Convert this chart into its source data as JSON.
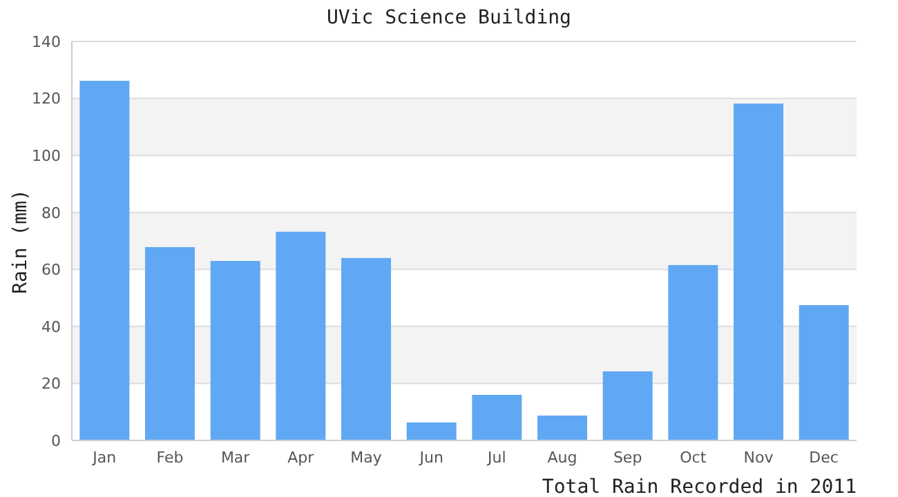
{
  "chart_data": {
    "type": "bar",
    "title": "UVic Science Building",
    "xlabel": "Total Rain Recorded in 2011",
    "ylabel": "Rain (mm)",
    "categories": [
      "Jan",
      "Feb",
      "Mar",
      "Apr",
      "May",
      "Jun",
      "Jul",
      "Aug",
      "Sep",
      "Oct",
      "Nov",
      "Dec"
    ],
    "values": [
      126.2,
      67.8,
      63,
      73.2,
      64,
      6.3,
      16,
      8.7,
      24.2,
      61.5,
      118.2,
      47.5
    ],
    "color": "#60a8f4",
    "ylim": [
      0,
      140
    ],
    "yticks": [
      0,
      20,
      40,
      60,
      80,
      100,
      120,
      140
    ],
    "grid": "y"
  }
}
